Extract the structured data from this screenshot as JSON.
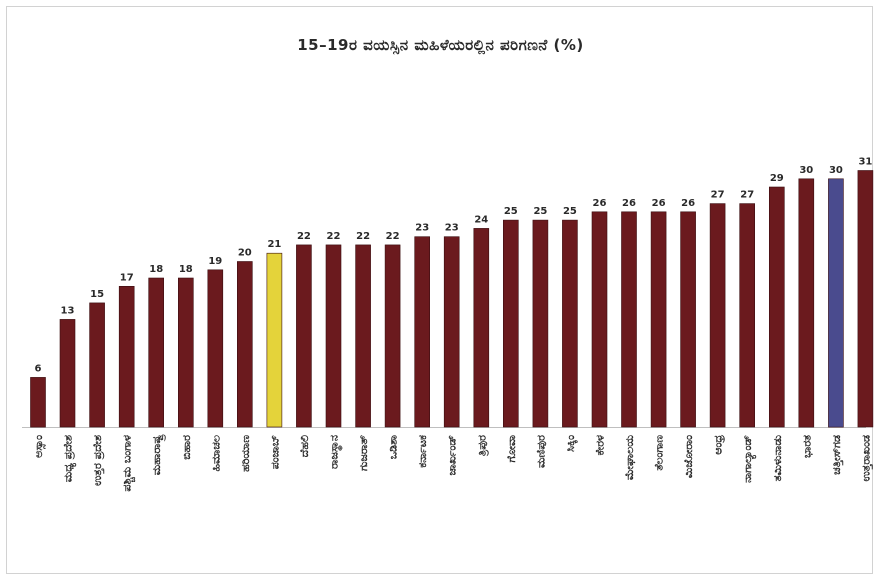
{
  "chart_data": {
    "type": "bar",
    "title": "15–19ರ ವಯಸ್ಸಿನ ಮಹಿಳೆಯರಲ್ಲಿನ ಪರಿಗಣನೆ (%)",
    "xlabel": "",
    "ylabel": "",
    "ylim": [
      0,
      40
    ],
    "grid": false,
    "legend": "none",
    "categories": [
      "ಅಸ್ಸಾಂ",
      "ಮಧ್ಯ ಪ್ರದೇಶ",
      "ಉತ್ತರ ಪ್ರದೇಶ",
      "ಪಶ್ಚಿಮ ಬಂಗಾಳ",
      "ಮಹಾರಾಷ್ಟ್ರ",
      "ಬಿಹಾರ",
      "ಹಿಮಾಚಲ",
      "ಹರಿಯಾಣ",
      "ಪಂಜಾಬ್",
      "ದೆಹಲಿ",
      "ರಾಜಸ್ಥಾನ",
      "ಗುಜರಾತ್",
      "ಒಡಿಶಾ",
      "ಕರ್ನಾಟಕ",
      "ಜಾರ್ಖಂಡ್",
      "ತ್ರಿಪುರ",
      "ಗೋವಾ",
      "ಮಣಿಪುರ",
      "ಸಿಕ್ಕಿಂ",
      "ಕೇರಳ",
      "ಮೇಘಾಲಯ",
      "ತೆಲಂಗಾಣ",
      "ಮಿಜೋರಾಂ",
      "ಆಂಧ್ರ",
      "ನಾಗಾಲ್ಯಾಂಡ್",
      "ತಮಿಳುನಾಡು",
      "ಭಾರತ",
      "ಚತ್ತೀಸ್‌ಗಡ",
      "ಉತ್ತರಾಖಂಡ"
    ],
    "values": [
      6,
      13,
      15,
      17,
      18,
      18,
      19,
      20,
      21,
      22,
      22,
      22,
      22,
      23,
      23,
      24,
      25,
      25,
      25,
      26,
      26,
      26,
      26,
      27,
      27,
      29,
      30,
      30,
      31
    ],
    "highlights": {
      "8": "#e4d33a",
      "27": "#4a4b8e"
    },
    "colors": {
      "bar": "#6b1a1e",
      "highlight_yellow": "#e4d33a",
      "highlight_blue": "#4a4b8e"
    }
  }
}
